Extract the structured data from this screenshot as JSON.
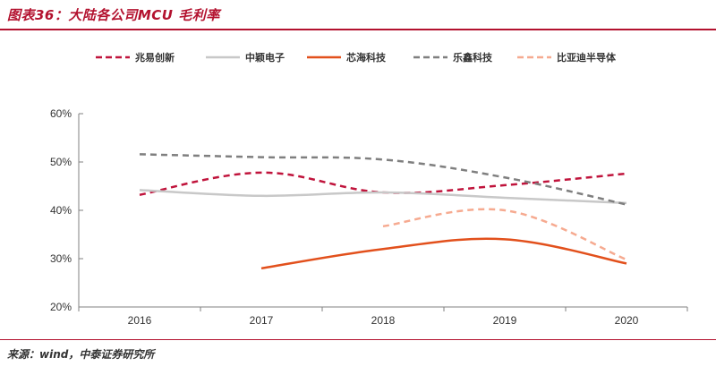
{
  "header": {
    "title": "图表36：大陆各公司MCU 毛利率"
  },
  "footer": {
    "source": "来源：wind，中泰证券研究所"
  },
  "chart_data": {
    "type": "line",
    "title": "",
    "xlabel": "",
    "ylabel": "",
    "categories": [
      "2016",
      "2017",
      "2018",
      "2019",
      "2020"
    ],
    "ylim": [
      0.2,
      0.6
    ],
    "yticks": [
      0.2,
      0.3,
      0.4,
      0.5,
      0.6
    ],
    "ytick_labels": [
      "20%",
      "30%",
      "40%",
      "50%",
      "60%"
    ],
    "legend_position": "top",
    "grid": false,
    "series": [
      {
        "name": "兆易创新",
        "color": "#c0143c",
        "dash": "dashed",
        "values": [
          0.432,
          0.478,
          0.437,
          0.452,
          0.476
        ]
      },
      {
        "name": "中颖电子",
        "color": "#c8c8c8",
        "dash": "solid",
        "values": [
          0.442,
          0.43,
          0.437,
          0.426,
          0.415
        ]
      },
      {
        "name": "芯海科技",
        "color": "#e2501c",
        "dash": "solid",
        "values": [
          null,
          0.28,
          0.32,
          0.34,
          0.29
        ]
      },
      {
        "name": "乐鑫科技",
        "color": "#7f7f7f",
        "dash": "dashed",
        "values": [
          0.516,
          0.51,
          0.505,
          0.468,
          0.412
        ]
      },
      {
        "name": "比亚迪半导体",
        "color": "#f6aa90",
        "dash": "dashed",
        "values": [
          null,
          null,
          0.367,
          0.4,
          0.298
        ]
      }
    ]
  }
}
